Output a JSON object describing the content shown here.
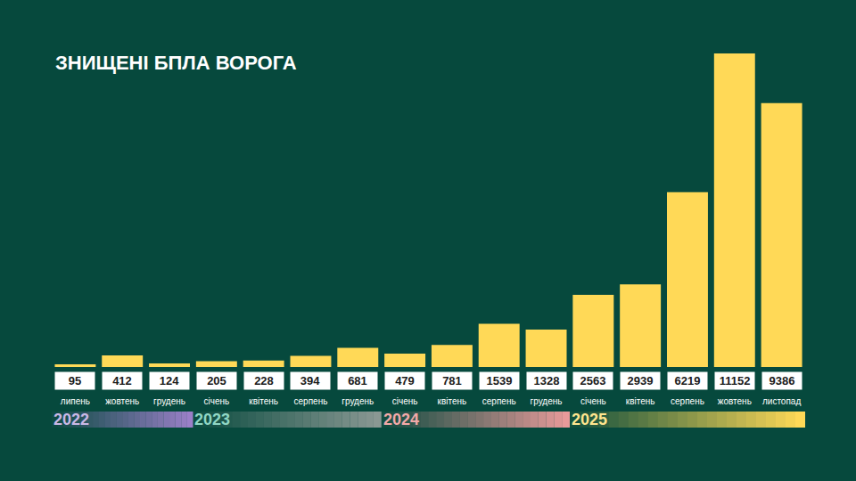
{
  "chart_data": {
    "type": "bar",
    "title": "ЗНИЩЕНІ БПЛА ВОРОГА",
    "categories": [
      "липень",
      "жовтень",
      "грудень",
      "січень",
      "квітень",
      "серпень",
      "грудень",
      "січень",
      "квітень",
      "серпень",
      "грудень",
      "січень",
      "квітень",
      "серпень",
      "жовтень",
      "листопад"
    ],
    "years": [
      "2022",
      "2022",
      "2022",
      "2023",
      "2023",
      "2023",
      "2023",
      "2024",
      "2024",
      "2024",
      "2024",
      "2025",
      "2025",
      "2025",
      "2025",
      "2025"
    ],
    "values": [
      95,
      412,
      124,
      205,
      228,
      394,
      681,
      479,
      781,
      1539,
      1328,
      2563,
      2939,
      6219,
      11152,
      9386
    ],
    "color": "#ffd957",
    "ylim": [
      0,
      11152
    ],
    "grid": false,
    "data_labels": true,
    "tick_labels": "x"
  }
}
